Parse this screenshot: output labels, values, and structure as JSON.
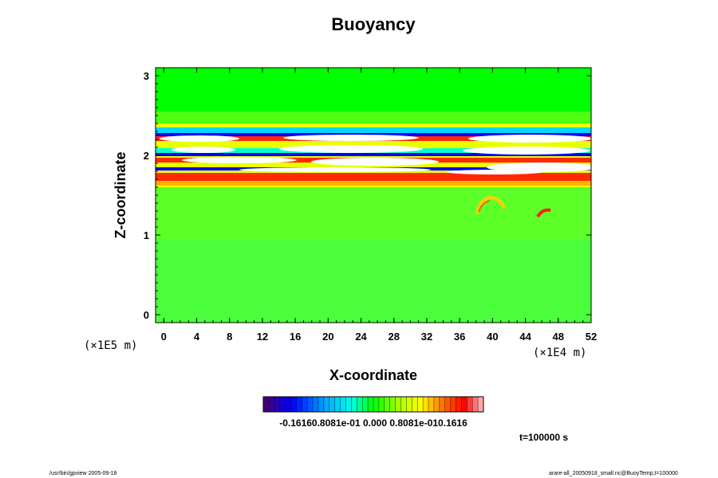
{
  "chart_data": {
    "type": "heatmap",
    "title": "Buoyancy",
    "xlabel": "X-coordinate",
    "ylabel": "Z-coordinate",
    "xlim": [
      -1,
      52
    ],
    "ylim": [
      -0.1,
      3.1
    ],
    "x_ticks": [
      0,
      4,
      8,
      12,
      16,
      20,
      24,
      28,
      32,
      36,
      40,
      44,
      48,
      52
    ],
    "y_ticks": [
      0,
      1,
      2,
      3
    ],
    "x_unit": "(×1E4 m)",
    "z_unit": "(×1E5 m)",
    "colorbar": {
      "range": [
        -0.1616,
        0.1616
      ],
      "tick_labels_text": "-0.16160.8081e-01 0.000 0.8081e-010.1616"
    },
    "annotation_time": "t=100000 s",
    "grid": false,
    "legend": "colorbar-bottom"
  },
  "colors": {
    "background_field": "#00ff00",
    "extreme_high": "#ffffff",
    "high": "#ff2a00",
    "low": "#0000ff"
  },
  "footer": {
    "left": "/usr/bin/gpview 2005-09-18",
    "right": "arare-all_20050918_small.nc@BuoyTemp,t=100000"
  }
}
